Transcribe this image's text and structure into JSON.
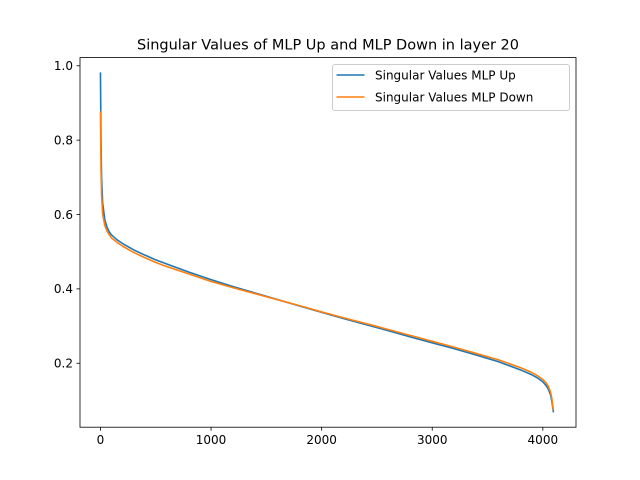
{
  "chart_data": {
    "type": "line",
    "title": "Singular Values of MLP Up and MLP Down in layer 20",
    "xlabel": "",
    "ylabel": "",
    "xlim": [
      -185,
      4300
    ],
    "ylim": [
      0.028,
      1.022
    ],
    "x_ticks": [
      0,
      1000,
      2000,
      3000,
      4000
    ],
    "y_ticks": [
      0.2,
      0.4,
      0.6,
      0.8,
      1.0
    ],
    "x_tick_labels": [
      "0",
      "1000",
      "2000",
      "3000",
      "4000"
    ],
    "y_tick_labels": [
      "0.2",
      "0.4",
      "0.6",
      "0.8",
      "1.0"
    ],
    "grid": false,
    "legend": "top-right",
    "series": [
      {
        "name": "Singular Values MLP Up",
        "color": "#1f77b4",
        "x": [
          0,
          5,
          10,
          20,
          40,
          60,
          80,
          100,
          150,
          200,
          300,
          400,
          500,
          600,
          800,
          1000,
          1200,
          1500,
          1800,
          2000,
          2200,
          2500,
          2800,
          3000,
          3200,
          3400,
          3600,
          3800,
          3900,
          3950,
          4000,
          4030,
          4050,
          4070,
          4080,
          4090,
          4095
        ],
        "y": [
          0.98,
          0.8,
          0.7,
          0.63,
          0.585,
          0.565,
          0.553,
          0.545,
          0.532,
          0.522,
          0.505,
          0.491,
          0.478,
          0.467,
          0.445,
          0.425,
          0.406,
          0.38,
          0.354,
          0.337,
          0.32,
          0.296,
          0.271,
          0.255,
          0.239,
          0.222,
          0.204,
          0.182,
          0.169,
          0.161,
          0.15,
          0.14,
          0.13,
          0.115,
          0.1,
          0.08,
          0.07
        ]
      },
      {
        "name": "Singular Values MLP Down",
        "color": "#ff7f0e",
        "x": [
          0,
          5,
          10,
          20,
          40,
          60,
          80,
          100,
          150,
          200,
          300,
          400,
          500,
          600,
          800,
          1000,
          1200,
          1500,
          1800,
          2000,
          2200,
          2500,
          2800,
          3000,
          3200,
          3400,
          3600,
          3800,
          3900,
          3950,
          4000,
          4030,
          4050,
          4070,
          4080,
          4090,
          4095
        ],
        "y": [
          0.875,
          0.72,
          0.65,
          0.6,
          0.57,
          0.555,
          0.545,
          0.537,
          0.525,
          0.515,
          0.498,
          0.484,
          0.471,
          0.46,
          0.44,
          0.42,
          0.403,
          0.379,
          0.355,
          0.338,
          0.322,
          0.299,
          0.275,
          0.259,
          0.243,
          0.226,
          0.209,
          0.188,
          0.175,
          0.167,
          0.156,
          0.147,
          0.138,
          0.122,
          0.108,
          0.085,
          0.075
        ]
      }
    ]
  }
}
